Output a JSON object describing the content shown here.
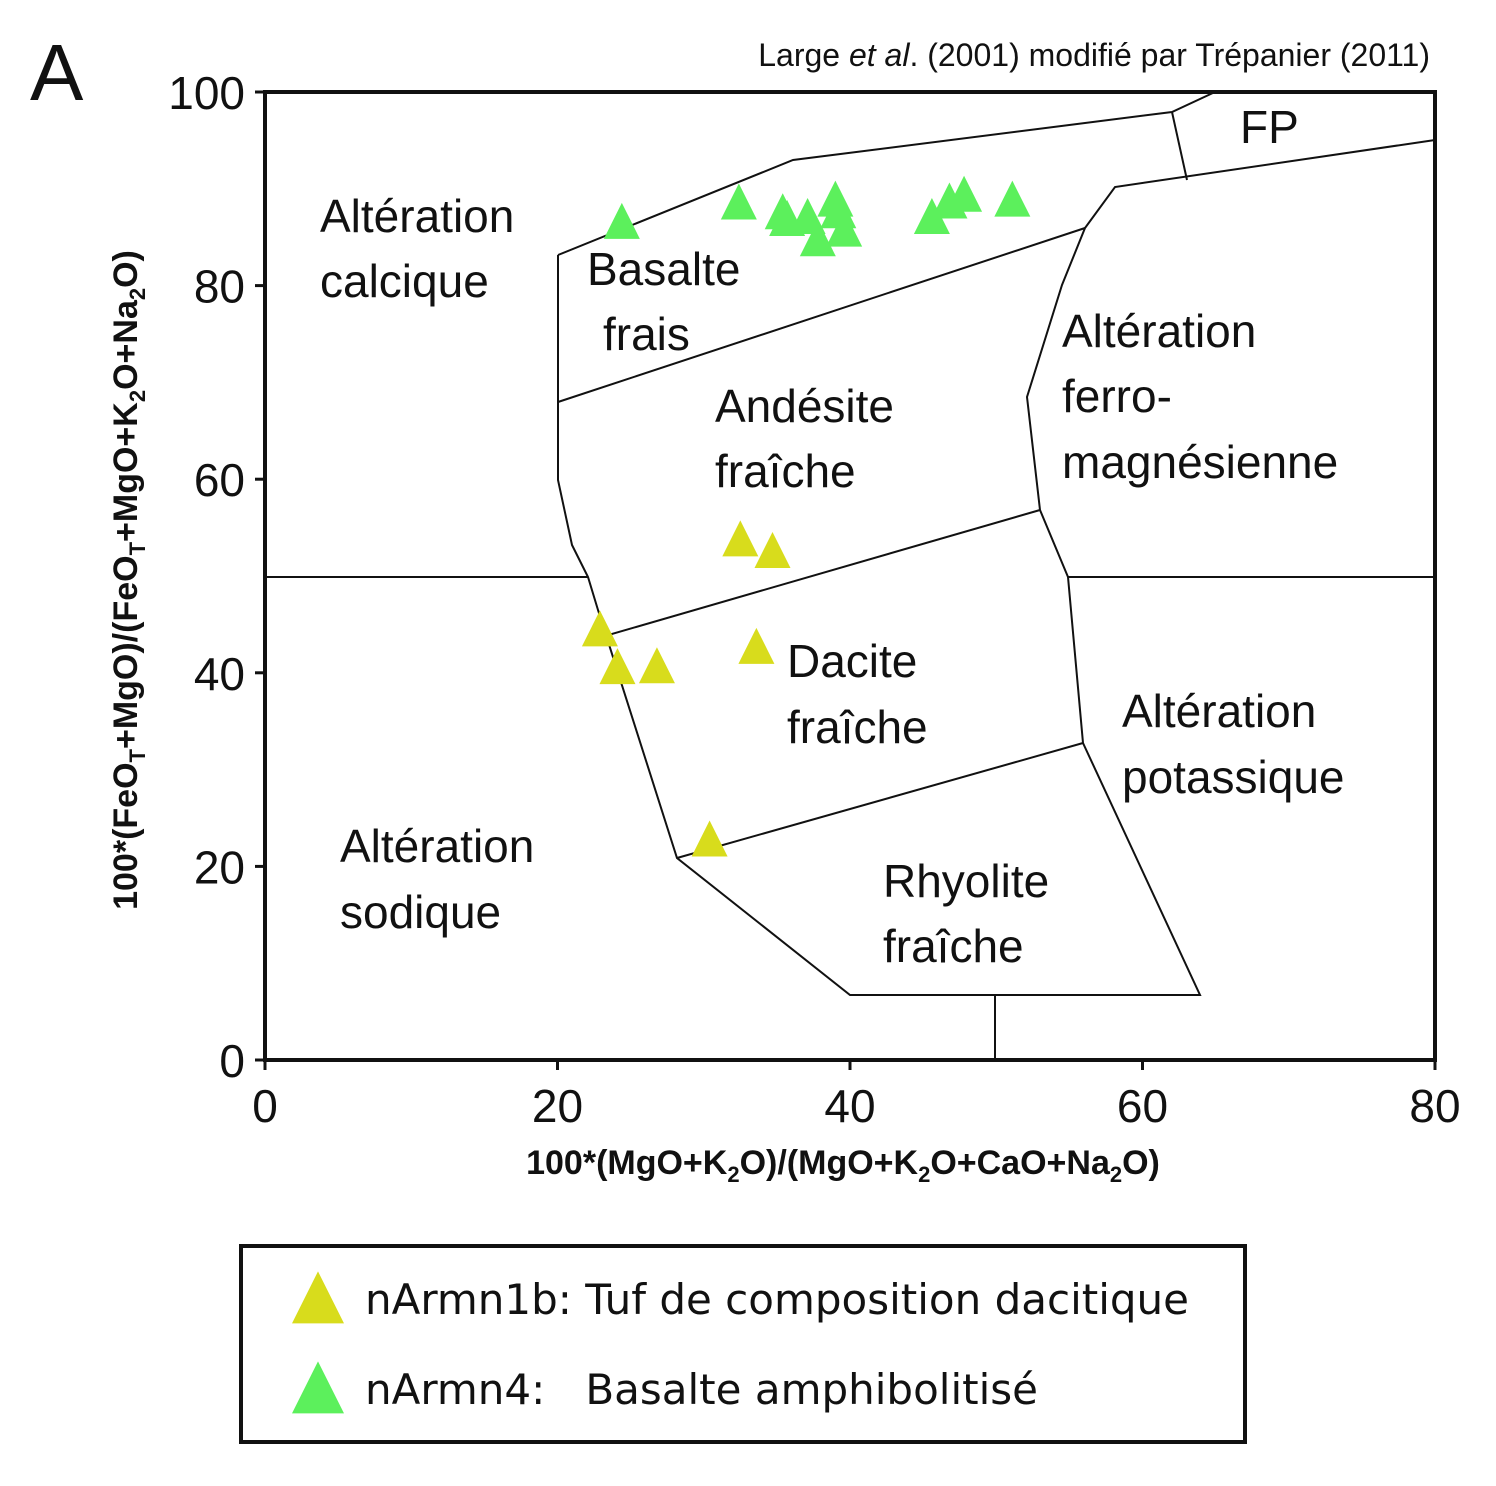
{
  "chart_data": {
    "type": "scatter",
    "panel_label": "A",
    "title": [
      "Large ",
      "et al",
      ". (2001) modifié par Trépanier (2011)"
    ],
    "xlabel": [
      "100*(MgO+K",
      "2",
      "O)/(MgO+K",
      "2",
      "O+CaO+Na",
      "2",
      "O)"
    ],
    "ylabel": [
      "100*(FeO",
      "T",
      "+MgO)/(FeO",
      "T",
      "+MgO+K",
      "2",
      "O+Na",
      "2",
      "O)"
    ],
    "xlim": [
      0,
      80
    ],
    "ylim": [
      0,
      100
    ],
    "xticks": [
      0,
      20,
      40,
      60,
      80
    ],
    "yticks": [
      0,
      20,
      40,
      60,
      80,
      100
    ],
    "grid": false,
    "regions": [
      {
        "lines": [
          "Altération",
          "calcique"
        ]
      },
      {
        "lines": [
          "Basalte",
          "frais"
        ]
      },
      {
        "lines": [
          "Andésite",
          "fraîche"
        ]
      },
      {
        "lines": [
          "Altération",
          "ferro-",
          "magnésienne"
        ]
      },
      {
        "lines": [
          "Dacite",
          "fraîche"
        ]
      },
      {
        "lines": [
          "Altération",
          "potassique"
        ]
      },
      {
        "lines": [
          "Altération",
          "sodique"
        ]
      },
      {
        "lines": [
          "Rhyolite",
          "fraîche"
        ]
      },
      {
        "lines": [
          "FP"
        ]
      }
    ],
    "series": [
      {
        "name": "nArmn1b: Tuf de composition dacitique",
        "color": "#d8dc1c",
        "x": [
          32.5,
          34.7,
          22.9,
          24.1,
          26.8,
          33.6,
          30.4
        ],
        "y": [
          53.7,
          52.5,
          44.4,
          40.5,
          40.6,
          42.6,
          22.7
        ]
      },
      {
        "name": "nArmn4:   Basalte amphibolitisé",
        "color": "#5cf05c",
        "x": [
          24.4,
          32.4,
          35.4,
          35.7,
          37.1,
          37.8,
          39.0,
          39.2,
          39.6,
          45.6,
          46.8,
          47.8,
          51.1
        ],
        "y": [
          86.5,
          88.5,
          87.5,
          86.8,
          87.0,
          84.7,
          88.8,
          87.6,
          85.7,
          87.0,
          88.6,
          89.3,
          88.8
        ]
      }
    ]
  }
}
